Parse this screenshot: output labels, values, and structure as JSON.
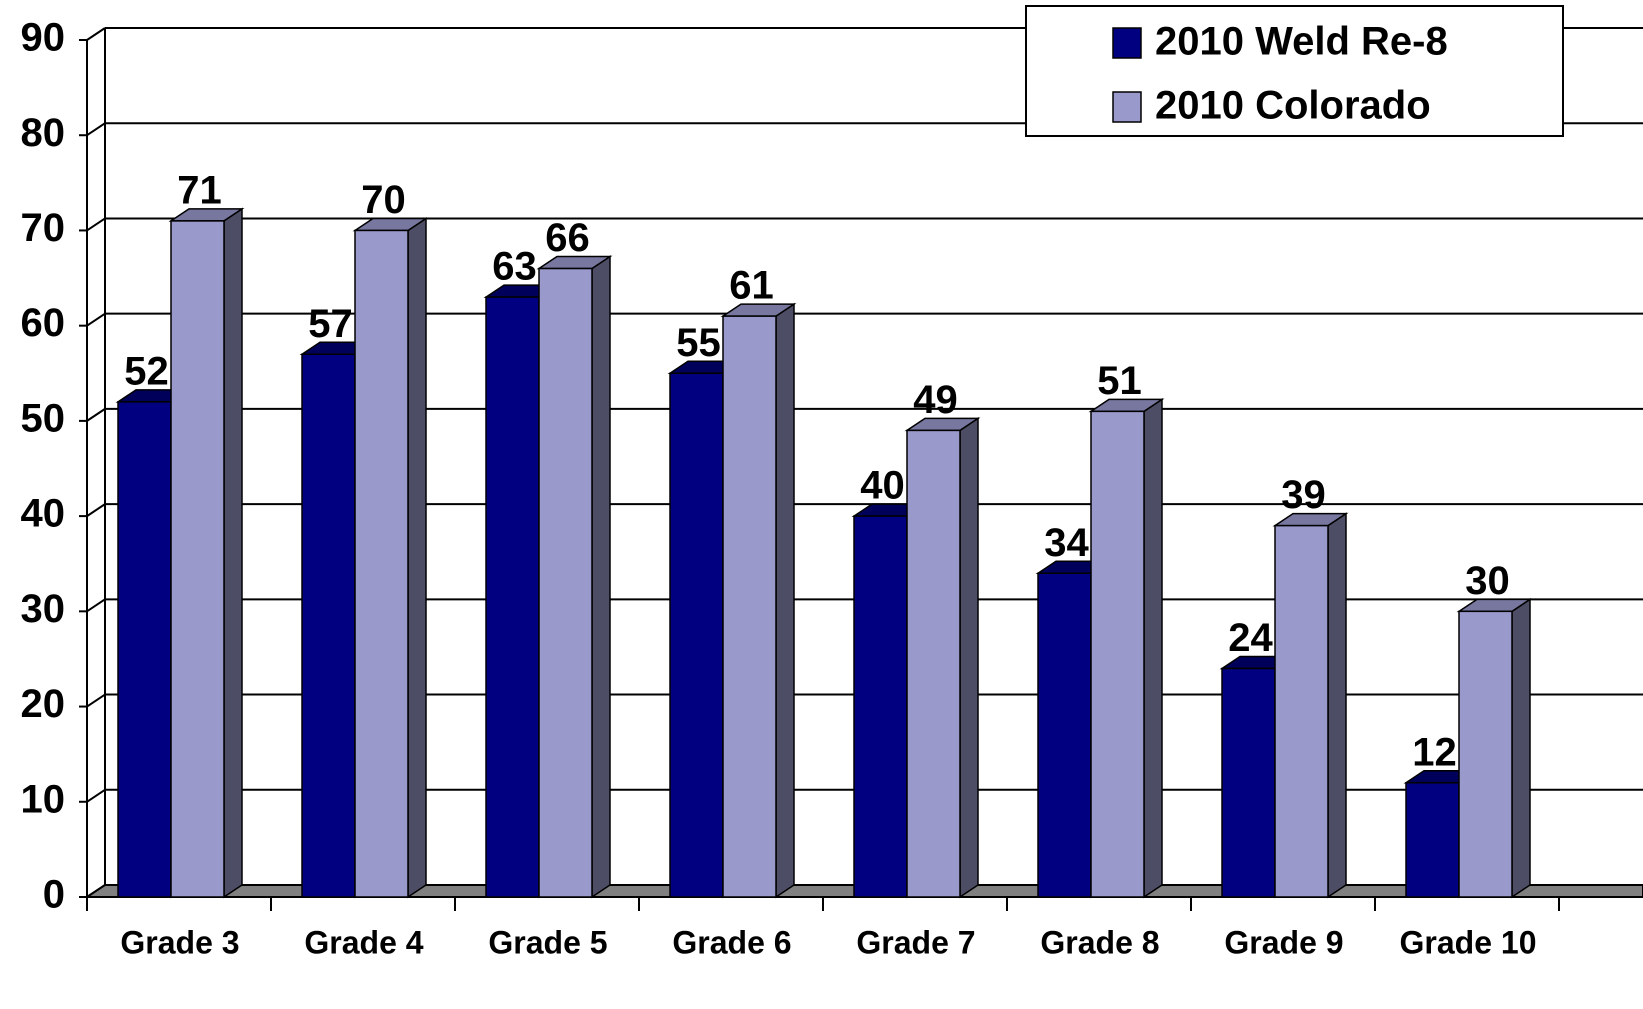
{
  "chart_data": {
    "type": "bar3d",
    "categories": [
      "Grade 3",
      "Grade 4",
      "Grade 5",
      "Grade 6",
      "Grade 7",
      "Grade 8",
      "Grade 9",
      "Grade 10"
    ],
    "series": [
      {
        "name": "2010 Weld Re-8",
        "color": "#000080",
        "values": [
          52,
          57,
          63,
          55,
          40,
          34,
          24,
          12
        ]
      },
      {
        "name": "2010 Colorado",
        "color": "#9999cc",
        "values": [
          71,
          70,
          66,
          61,
          49,
          51,
          39,
          30
        ]
      }
    ],
    "ylim": [
      0,
      90
    ],
    "yticks": [
      0,
      10,
      20,
      30,
      40,
      50,
      60,
      70,
      80,
      90
    ],
    "grid": true,
    "legend": "upper right",
    "data_labels": true
  }
}
